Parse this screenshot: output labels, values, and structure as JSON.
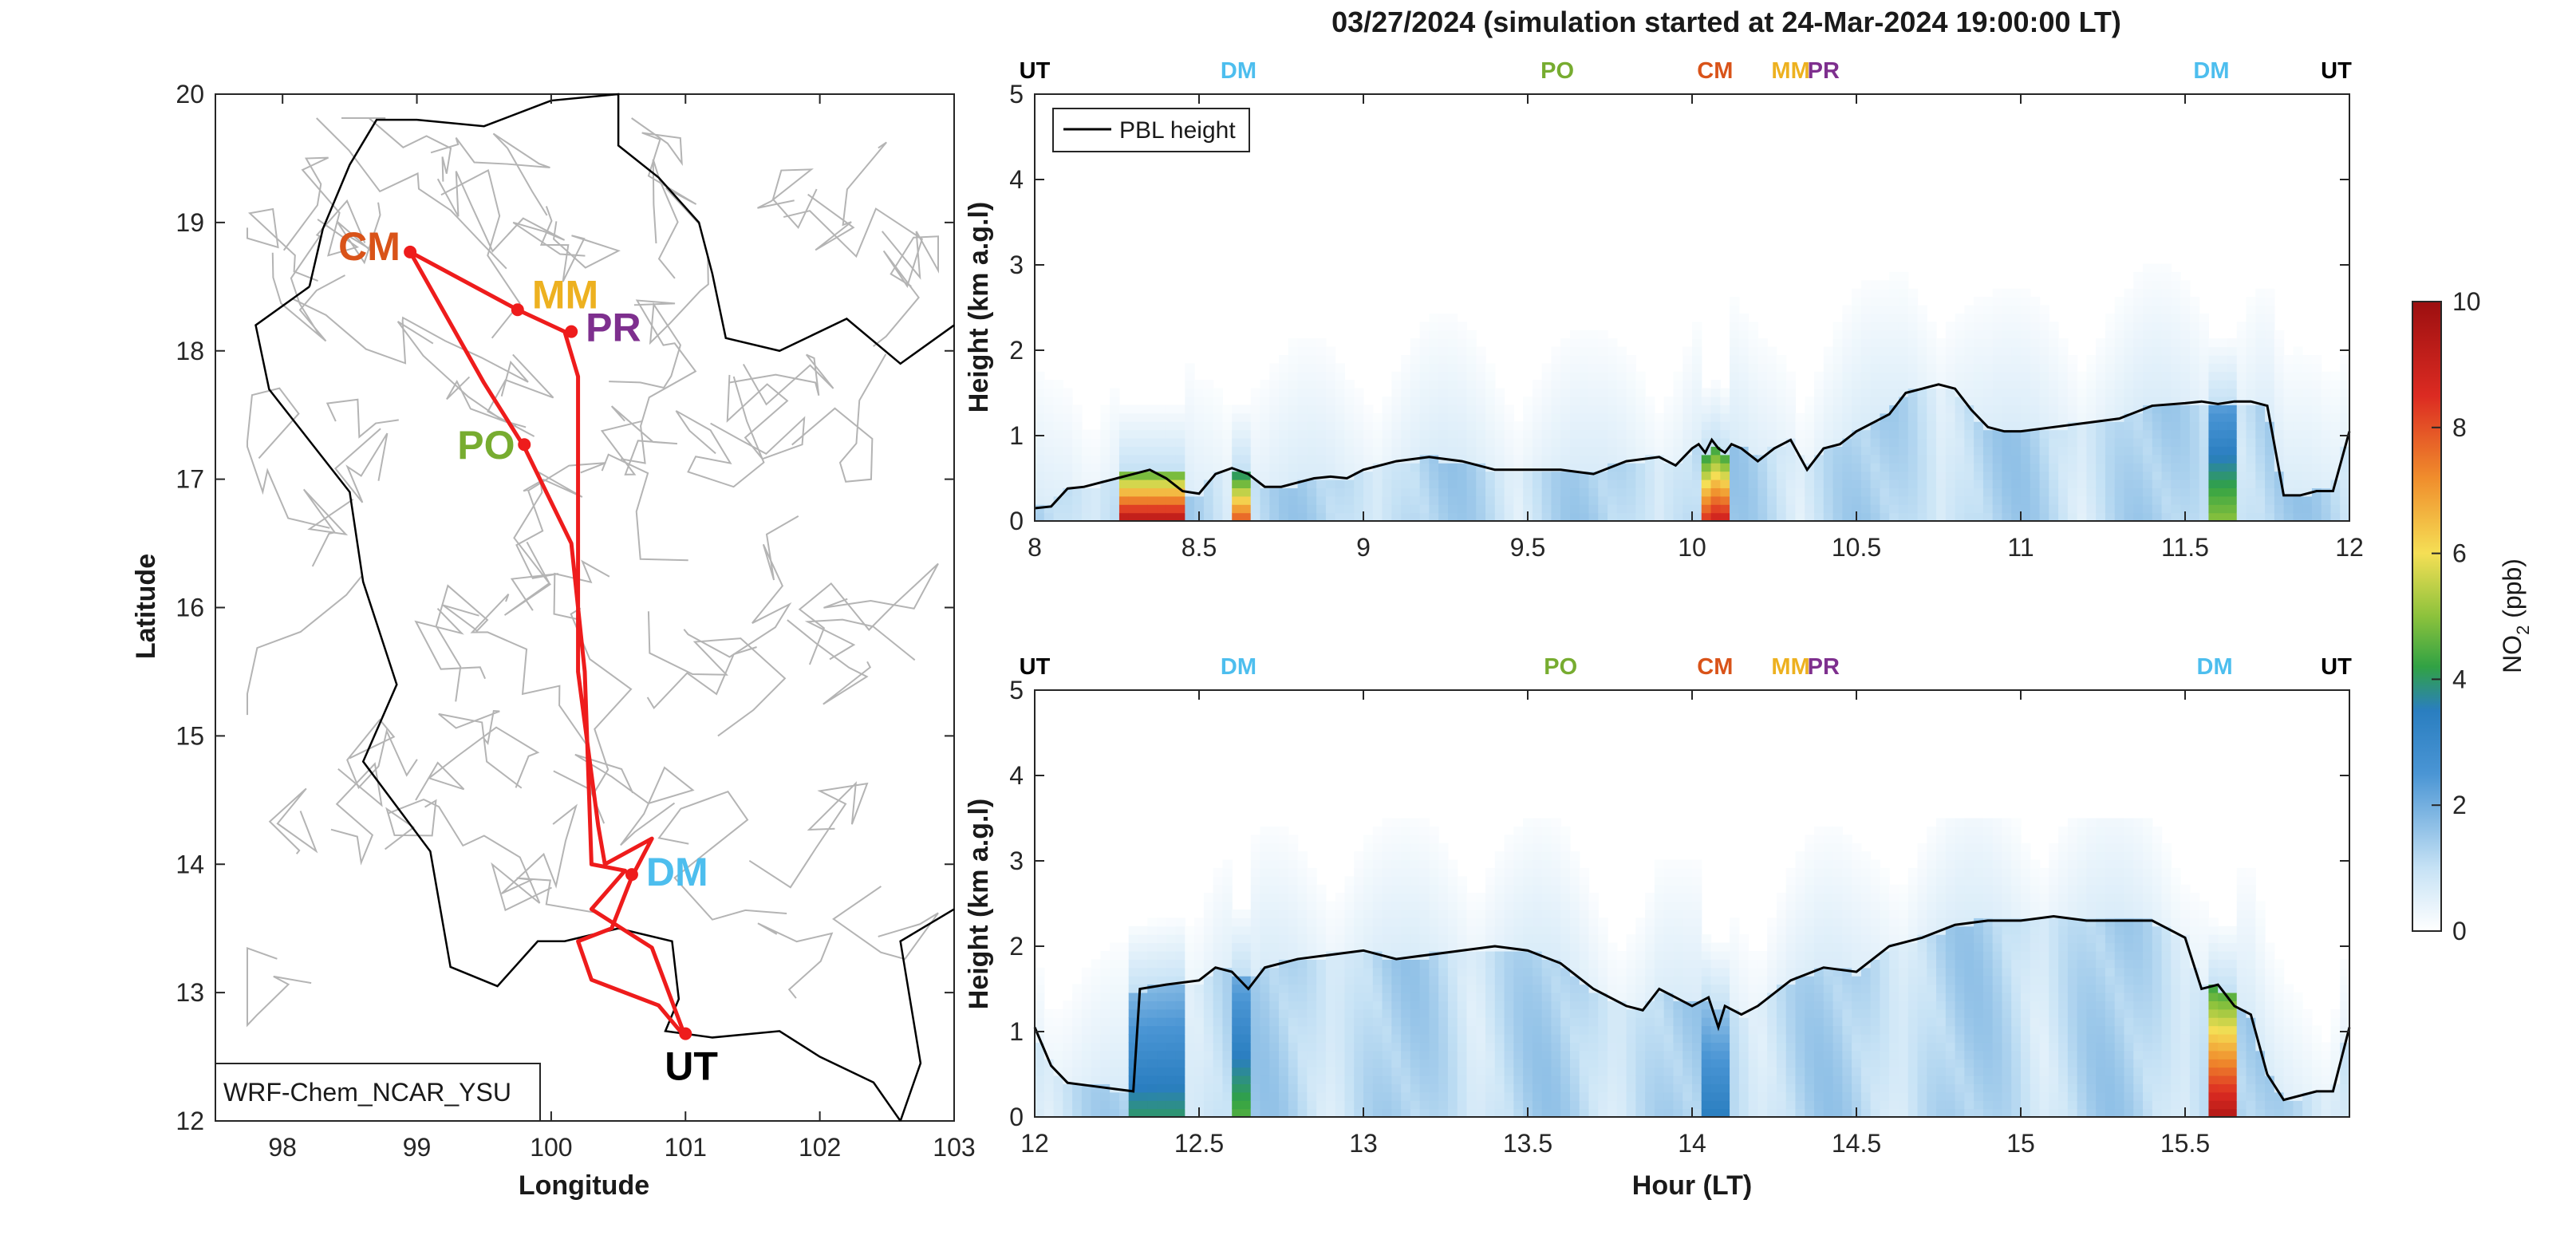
{
  "title": "03/27/2024 (simulation started at 24-Mar-2024 19:00:00 LT)",
  "chart_data": [
    {
      "type": "map",
      "name": "map",
      "xlabel": "Longitude",
      "ylabel": "Latitude",
      "xlim": [
        97.5,
        103
      ],
      "ylim": [
        12,
        20
      ],
      "xticks": [
        98,
        99,
        100,
        101,
        102,
        103
      ],
      "yticks": [
        12,
        13,
        14,
        15,
        16,
        17,
        18,
        19,
        20
      ],
      "model_label": "WRF-Chem_NCAR_YSU",
      "route_color": "#ee1c1c",
      "route": [
        [
          101.0,
          12.65
        ],
        [
          100.75,
          13.35
        ],
        [
          100.3,
          13.65
        ],
        [
          100.55,
          13.95
        ],
        [
          100.3,
          14.0
        ],
        [
          100.25,
          15.5
        ],
        [
          100.15,
          16.5
        ],
        [
          99.8,
          17.25
        ],
        [
          99.5,
          17.75
        ],
        [
          98.95,
          18.77
        ],
        [
          99.75,
          18.32
        ],
        [
          100.1,
          18.15
        ],
        [
          100.2,
          17.8
        ],
        [
          100.2,
          15.5
        ],
        [
          100.35,
          14.3
        ],
        [
          100.4,
          14.0
        ],
        [
          100.75,
          14.2
        ],
        [
          100.6,
          13.9
        ],
        [
          100.45,
          13.5
        ],
        [
          100.2,
          13.4
        ],
        [
          100.3,
          13.1
        ],
        [
          100.8,
          12.9
        ],
        [
          101.0,
          12.65
        ]
      ],
      "stations": [
        {
          "code": "CM",
          "lon": 98.95,
          "lat": 18.77,
          "color": "#d95319"
        },
        {
          "code": "MM",
          "lon": 99.75,
          "lat": 18.32,
          "color": "#edb120"
        },
        {
          "code": "PR",
          "lon": 100.15,
          "lat": 18.15,
          "color": "#7e2f8e"
        },
        {
          "code": "PO",
          "lon": 99.8,
          "lat": 17.27,
          "color": "#77ac30"
        },
        {
          "code": "DM",
          "lon": 100.6,
          "lat": 13.92,
          "color": "#4dbeee"
        },
        {
          "code": "UT",
          "lon": 101.0,
          "lat": 12.68,
          "color": "#000000"
        }
      ]
    },
    {
      "type": "heatmap",
      "name": "curtain-top",
      "ylabel": "Height (km a.g.l)",
      "xlim": [
        8,
        12
      ],
      "ylim": [
        0,
        5
      ],
      "xticks": [
        "8",
        "8.5",
        "9",
        "9.5",
        "10",
        "10.5",
        "11",
        "11.5",
        "12"
      ],
      "yticks": [
        "0",
        "1",
        "2",
        "3",
        "4",
        "5"
      ],
      "legend": "PBL height",
      "station_markers": [
        {
          "code": "UT",
          "x": 8.0,
          "color": "#000000"
        },
        {
          "code": "DM",
          "x": 8.62,
          "color": "#4dbeee"
        },
        {
          "code": "PO",
          "x": 9.59,
          "color": "#77ac30"
        },
        {
          "code": "CM",
          "x": 10.07,
          "color": "#d95319"
        },
        {
          "code": "MM",
          "x": 10.3,
          "color": "#edb120"
        },
        {
          "code": "PR",
          "x": 10.4,
          "color": "#7e2f8e"
        },
        {
          "code": "DM",
          "x": 11.58,
          "color": "#4dbeee"
        },
        {
          "code": "UT",
          "x": 11.96,
          "color": "#000000"
        }
      ],
      "pbl_x": [
        8,
        8.05,
        8.1,
        8.15,
        8.2,
        8.25,
        8.3,
        8.35,
        8.4,
        8.45,
        8.5,
        8.55,
        8.6,
        8.65,
        8.7,
        8.75,
        8.8,
        8.85,
        8.9,
        8.95,
        9,
        9.1,
        9.2,
        9.3,
        9.4,
        9.5,
        9.6,
        9.7,
        9.8,
        9.9,
        9.95,
        10,
        10.02,
        10.04,
        10.06,
        10.08,
        10.1,
        10.12,
        10.15,
        10.2,
        10.25,
        10.3,
        10.35,
        10.4,
        10.45,
        10.5,
        10.55,
        10.6,
        10.65,
        10.7,
        10.75,
        10.8,
        10.85,
        10.9,
        10.95,
        11,
        11.1,
        11.2,
        11.3,
        11.4,
        11.5,
        11.55,
        11.6,
        11.65,
        11.7,
        11.75,
        11.8,
        11.85,
        11.9,
        11.95,
        12
      ],
      "pbl_y": [
        0.15,
        0.17,
        0.38,
        0.4,
        0.45,
        0.5,
        0.55,
        0.6,
        0.5,
        0.35,
        0.32,
        0.55,
        0.62,
        0.55,
        0.4,
        0.4,
        0.45,
        0.5,
        0.52,
        0.5,
        0.6,
        0.7,
        0.75,
        0.7,
        0.6,
        0.6,
        0.6,
        0.55,
        0.7,
        0.75,
        0.65,
        0.85,
        0.9,
        0.8,
        0.95,
        0.85,
        0.8,
        0.9,
        0.85,
        0.7,
        0.85,
        0.95,
        0.6,
        0.85,
        0.9,
        1.05,
        1.15,
        1.25,
        1.5,
        1.55,
        1.6,
        1.55,
        1.3,
        1.1,
        1.05,
        1.05,
        1.1,
        1.15,
        1.2,
        1.35,
        1.38,
        1.4,
        1.37,
        1.4,
        1.4,
        1.35,
        0.3,
        0.3,
        0.35,
        0.35,
        1.05
      ],
      "hotspots": [
        {
          "x0": 8.25,
          "x1": 8.45,
          "peak": 9.5,
          "top": 0.6
        },
        {
          "x0": 8.6,
          "x1": 8.66,
          "peak": 8.0,
          "top": 0.6
        },
        {
          "x0": 10.02,
          "x1": 10.06,
          "peak": 8.5,
          "top": 0.7
        },
        {
          "x0": 10.07,
          "x1": 10.12,
          "peak": 9.0,
          "top": 0.7
        },
        {
          "x0": 11.57,
          "x1": 11.66,
          "peak": 5.0,
          "top": 1.3
        }
      ]
    },
    {
      "type": "heatmap",
      "name": "curtain-bottom",
      "xlabel": "Hour (LT)",
      "ylabel": "Height (km a.g.l)",
      "xlim": [
        12,
        16
      ],
      "ylim": [
        0,
        5
      ],
      "xticks": [
        "12",
        "12.5",
        "13",
        "13.5",
        "14",
        "14.5",
        "15",
        "15.5"
      ],
      "yticks": [
        "0",
        "1",
        "2",
        "3",
        "4",
        "5"
      ],
      "station_markers": [
        {
          "code": "UT",
          "x": 12.0,
          "color": "#000000"
        },
        {
          "code": "DM",
          "x": 12.62,
          "color": "#4dbeee"
        },
        {
          "code": "PO",
          "x": 13.6,
          "color": "#77ac30"
        },
        {
          "code": "CM",
          "x": 14.07,
          "color": "#d95319"
        },
        {
          "code": "MM",
          "x": 14.3,
          "color": "#edb120"
        },
        {
          "code": "PR",
          "x": 14.4,
          "color": "#7e2f8e"
        },
        {
          "code": "DM",
          "x": 15.59,
          "color": "#4dbeee"
        },
        {
          "code": "UT",
          "x": 15.96,
          "color": "#000000"
        }
      ],
      "pbl_x": [
        12,
        12.05,
        12.1,
        12.2,
        12.3,
        12.32,
        12.4,
        12.5,
        12.55,
        12.6,
        12.65,
        12.7,
        12.8,
        12.9,
        13,
        13.1,
        13.2,
        13.3,
        13.4,
        13.5,
        13.6,
        13.7,
        13.8,
        13.85,
        13.9,
        13.95,
        14,
        14.05,
        14.08,
        14.1,
        14.15,
        14.2,
        14.3,
        14.4,
        14.5,
        14.6,
        14.7,
        14.8,
        14.9,
        15,
        15.1,
        15.2,
        15.3,
        15.4,
        15.5,
        15.55,
        15.6,
        15.65,
        15.7,
        15.75,
        15.8,
        15.85,
        15.9,
        15.95,
        16
      ],
      "pbl_y": [
        1.05,
        0.6,
        0.4,
        0.35,
        0.3,
        1.5,
        1.55,
        1.6,
        1.75,
        1.7,
        1.5,
        1.75,
        1.85,
        1.9,
        1.95,
        1.85,
        1.9,
        1.95,
        2.0,
        1.95,
        1.8,
        1.5,
        1.3,
        1.25,
        1.5,
        1.4,
        1.3,
        1.4,
        1.05,
        1.3,
        1.2,
        1.3,
        1.6,
        1.75,
        1.7,
        2.0,
        2.1,
        2.25,
        2.3,
        2.3,
        2.35,
        2.3,
        2.3,
        2.3,
        2.1,
        1.5,
        1.55,
        1.3,
        1.2,
        0.5,
        0.2,
        0.25,
        0.3,
        0.3,
        1.05
      ],
      "hotspots": [
        {
          "x0": 12.3,
          "x1": 12.46,
          "peak": 4.0,
          "top": 1.5
        },
        {
          "x0": 12.6,
          "x1": 12.66,
          "peak": 4.5,
          "top": 1.7
        },
        {
          "x0": 14.02,
          "x1": 14.05,
          "peak": 3.5,
          "top": 1.3
        },
        {
          "x0": 14.07,
          "x1": 14.12,
          "peak": 3.5,
          "top": 1.3
        },
        {
          "x0": 15.57,
          "x1": 15.66,
          "peak": 9.5,
          "top": 1.5
        }
      ]
    },
    {
      "type": "colorbar",
      "name": "colorbar",
      "label_main": "NO",
      "label_sub": "2",
      "label_unit": " (ppb)",
      "range": [
        0,
        10
      ],
      "ticks": [
        "0",
        "2",
        "4",
        "6",
        "8",
        "10"
      ]
    }
  ]
}
